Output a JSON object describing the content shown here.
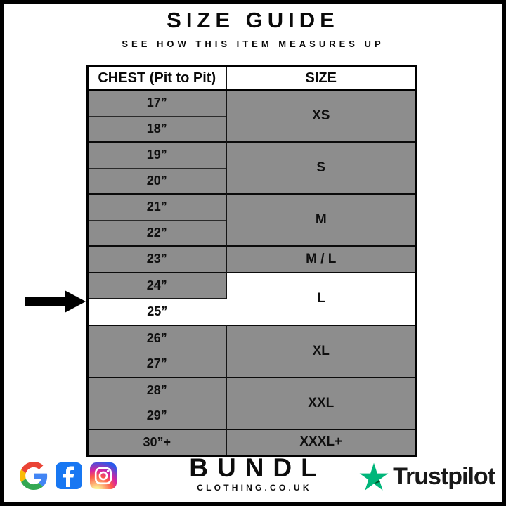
{
  "header": {
    "title": "SIZE GUIDE",
    "subtitle": "SEE HOW THIS ITEM MEASURES UP"
  },
  "table": {
    "columns": [
      "CHEST (Pit to Pit)",
      "SIZE"
    ],
    "groups": [
      {
        "size": "XS",
        "chest": [
          "17”",
          "18”"
        ]
      },
      {
        "size": "S",
        "chest": [
          "19”",
          "20”"
        ]
      },
      {
        "size": "M",
        "chest": [
          "21”",
          "22”"
        ]
      },
      {
        "size": "M / L",
        "chest": [
          "23”"
        ]
      },
      {
        "size": "L",
        "chest": [
          "24”",
          "25”"
        ],
        "size_white": true,
        "white_rows": [
          1
        ]
      },
      {
        "size": "XL",
        "chest": [
          "26”",
          "27”"
        ]
      },
      {
        "size": "XXL",
        "chest": [
          "28”",
          "29”"
        ]
      },
      {
        "size": "XXXL+",
        "chest": [
          "30”+"
        ]
      }
    ],
    "colors": {
      "row_gray": "#8d8d8d",
      "highlight": "#ffffff",
      "border": "#000000"
    }
  },
  "chart_data": {
    "type": "table",
    "title": "SIZE GUIDE",
    "subtitle": "SEE HOW THIS ITEM MEASURES UP",
    "columns": [
      "CHEST (Pit to Pit)",
      "SIZE"
    ],
    "rows": [
      [
        "17”",
        "XS"
      ],
      [
        "18”",
        "XS"
      ],
      [
        "19”",
        "S"
      ],
      [
        "20”",
        "S"
      ],
      [
        "21”",
        "M"
      ],
      [
        "22”",
        "M"
      ],
      [
        "23”",
        "M / L"
      ],
      [
        "24”",
        "L"
      ],
      [
        "25”",
        "L"
      ],
      [
        "26”",
        "XL"
      ],
      [
        "27”",
        "XL"
      ],
      [
        "28”",
        "XXL"
      ],
      [
        "29”",
        "XXL"
      ],
      [
        "30”+",
        "XXXL+"
      ]
    ],
    "highlighted_row": "25”",
    "annotation": "black arrow points at the 25” / L row"
  },
  "pointer": {
    "target": "25”",
    "icon": "right-arrow"
  },
  "footer": {
    "social": [
      "google-icon",
      "facebook-icon",
      "instagram-icon"
    ],
    "brand": {
      "name": "BUNDL",
      "domain": "CLOTHING.CO.UK"
    },
    "trustpilot": {
      "label": "Trustpilot",
      "star_color": "#00B67A",
      "notch_color": "#005128"
    }
  },
  "colors": {
    "facebook_blue": "#1877F2",
    "frame": "#000000"
  }
}
